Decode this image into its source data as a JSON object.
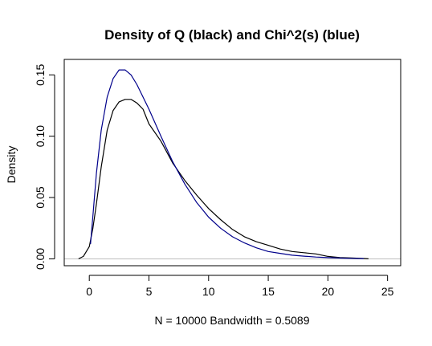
{
  "chart_data": {
    "type": "line",
    "title": "Density of Q (black) and Chi^2(s) (blue)",
    "xlabel": "N = 10000   Bandwidth = 0.5089",
    "ylabel": "Density",
    "xlim": [
      -2.1,
      26.1
    ],
    "ylim": [
      -0.0056,
      0.1626
    ],
    "xticks": [
      0,
      5,
      10,
      15,
      20,
      25
    ],
    "yticks": [
      0.0,
      0.05,
      0.1,
      0.15
    ],
    "ytick_labels": [
      "0.00",
      "0.05",
      "0.10",
      "0.15"
    ],
    "grid": false,
    "baseline_color": "#bebebe",
    "series": [
      {
        "color": "#000000",
        "x": [
          -0.9,
          -0.5,
          0.0,
          0.3,
          0.6,
          1.0,
          1.5,
          2.0,
          2.5,
          3.0,
          3.5,
          4.0,
          4.5,
          5.0,
          6.0,
          7.0,
          8.0,
          9.0,
          10.0,
          11.0,
          12.0,
          13.0,
          14.0,
          15.0,
          16.0,
          17.0,
          18.0,
          19.0,
          20.0,
          21.0,
          22.0,
          23.0,
          23.4
        ],
        "y": [
          0.0,
          0.002,
          0.01,
          0.025,
          0.045,
          0.075,
          0.105,
          0.121,
          0.128,
          0.13,
          0.13,
          0.127,
          0.122,
          0.11,
          0.096,
          0.078,
          0.064,
          0.052,
          0.041,
          0.032,
          0.024,
          0.018,
          0.014,
          0.011,
          0.008,
          0.006,
          0.005,
          0.004,
          0.002,
          0.001,
          0.0007,
          0.0003,
          0.0
        ]
      },
      {
        "color": "#00008b",
        "x": [
          0.1,
          0.3,
          0.6,
          1.0,
          1.5,
          2.0,
          2.5,
          3.0,
          3.5,
          4.0,
          5.0,
          6.0,
          7.0,
          8.0,
          9.0,
          10.0,
          11.0,
          12.0,
          13.0,
          14.0,
          15.0,
          16.0,
          17.0,
          18.0,
          19.0,
          20.0,
          21.0,
          22.0,
          23.0
        ],
        "y": [
          0.012,
          0.035,
          0.07,
          0.105,
          0.132,
          0.147,
          0.154,
          0.154,
          0.15,
          0.142,
          0.122,
          0.1,
          0.079,
          0.061,
          0.046,
          0.034,
          0.025,
          0.018,
          0.013,
          0.009,
          0.006,
          0.0045,
          0.003,
          0.0022,
          0.0015,
          0.001,
          0.0007,
          0.0004,
          0.0002
        ]
      }
    ]
  }
}
